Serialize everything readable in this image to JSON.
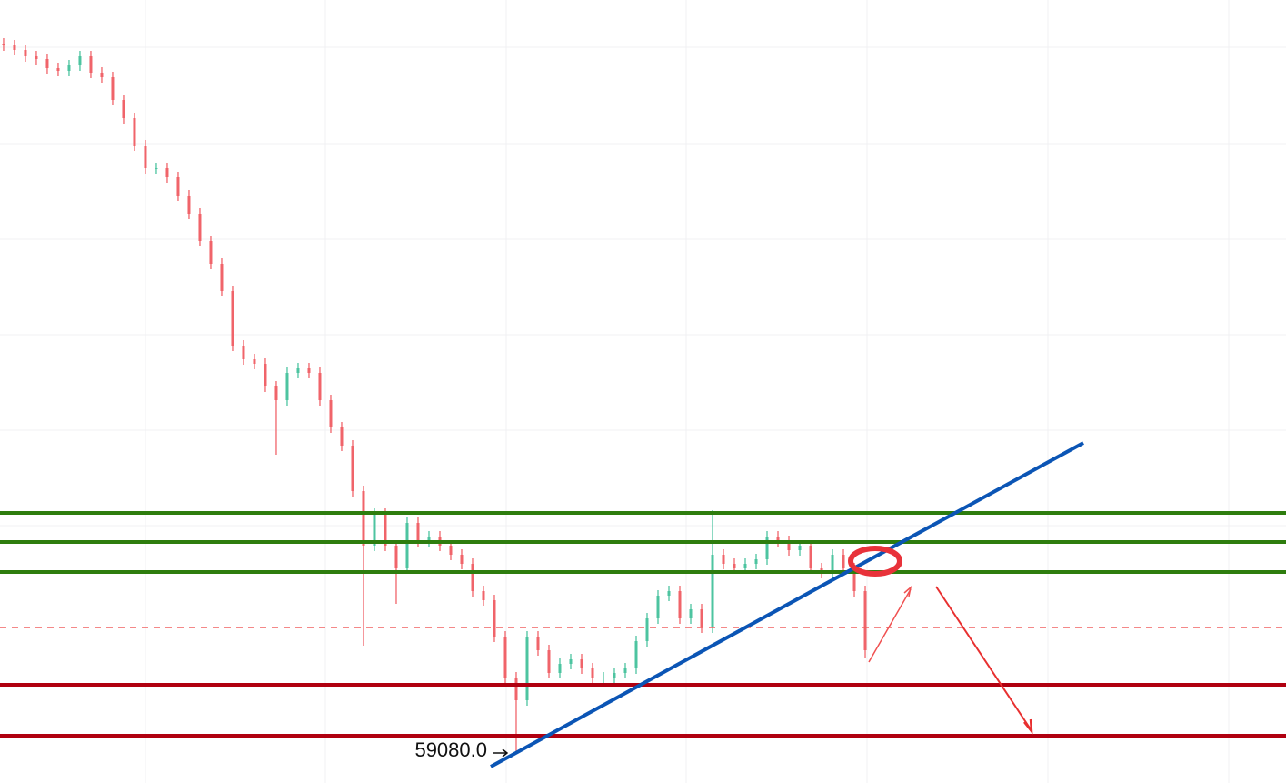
{
  "chart_data": {
    "type": "ohlc",
    "up_color": "#4dc4a0",
    "down_color": "#f0646a",
    "xlim": [
      -0.33,
      117.58
    ],
    "ylim": [
      58730,
      67340
    ],
    "open": [
      66860,
      66840,
      66790,
      66720,
      66690,
      66590,
      66560,
      66620,
      66720,
      66540,
      66490,
      66240,
      66040,
      65740,
      65490,
      65490,
      65390,
      65190,
      64990,
      64690,
      64440,
      64140,
      63540,
      63390,
      63340,
      63090,
      62940,
      63240,
      63290,
      63240,
      62940,
      62640,
      62440,
      61940,
      61340,
      61690,
      61340,
      61090,
      61590,
      61390,
      61440,
      61340,
      61240,
      61140,
      60840,
      60740,
      60340,
      59890,
      59640,
      60340,
      60190,
      59940,
      60040,
      60090,
      59990,
      59890,
      59890,
      59940,
      59990,
      60290,
      60540,
      60790,
      60840,
      60540,
      60640,
      60440,
      61240,
      61140,
      61090,
      61140,
      61190,
      61440,
      61390,
      61290,
      61340,
      61090,
      61040,
      61240,
      61090,
      60840
    ],
    "high": [
      66920,
      66900,
      66850,
      66780,
      66750,
      66650,
      66680,
      66780,
      66780,
      66600,
      66550,
      66300,
      66100,
      65800,
      65550,
      65550,
      65450,
      65250,
      65050,
      64750,
      64500,
      64200,
      63600,
      63450,
      63400,
      63150,
      63300,
      63350,
      63350,
      63300,
      63000,
      62700,
      62500,
      62000,
      61750,
      61750,
      61400,
      61650,
      61650,
      61500,
      61500,
      61400,
      61300,
      61200,
      60900,
      60800,
      60400,
      59950,
      60400,
      60400,
      60250,
      60100,
      60150,
      60150,
      60050,
      59950,
      60000,
      60050,
      60350,
      60600,
      60850,
      60900,
      60900,
      60700,
      60700,
      61730,
      61300,
      61200,
      61200,
      61250,
      61500,
      61500,
      61450,
      61400,
      61400,
      61150,
      61300,
      61300,
      61150,
      60900
    ],
    "low": [
      66780,
      66730,
      66660,
      66630,
      66530,
      66500,
      66500,
      66560,
      66480,
      66430,
      66180,
      65980,
      65680,
      65430,
      65430,
      65330,
      65130,
      64930,
      64630,
      64380,
      64080,
      63480,
      63330,
      63280,
      63030,
      62340,
      62880,
      63180,
      63180,
      62880,
      62580,
      62380,
      61880,
      60240,
      61280,
      61280,
      60700,
      61030,
      61330,
      61330,
      61280,
      61180,
      61080,
      60780,
      60680,
      60280,
      59830,
      59080,
      59580,
      60130,
      59880,
      59880,
      59980,
      59930,
      59830,
      59830,
      59830,
      59880,
      59930,
      60230,
      60480,
      60730,
      60480,
      60480,
      60380,
      60380,
      61080,
      61030,
      61030,
      61080,
      61130,
      61330,
      61230,
      61230,
      61030,
      60980,
      60980,
      61030,
      60780,
      60110
    ],
    "close": [
      66840,
      66790,
      66720,
      66690,
      66590,
      66560,
      66620,
      66720,
      66540,
      66490,
      66240,
      66040,
      65740,
      65490,
      65490,
      65390,
      65190,
      64990,
      64690,
      64440,
      64140,
      63540,
      63390,
      63340,
      63090,
      62940,
      63240,
      63290,
      63240,
      62940,
      62640,
      62440,
      61940,
      61340,
      61690,
      61340,
      61090,
      61590,
      61390,
      61440,
      61340,
      61240,
      61140,
      60840,
      60740,
      60340,
      59890,
      59640,
      60340,
      60190,
      59940,
      60040,
      60090,
      59990,
      59890,
      59890,
      59940,
      59990,
      60290,
      60540,
      60790,
      60840,
      60540,
      60640,
      60440,
      61240,
      61140,
      61090,
      61140,
      61190,
      61440,
      61390,
      61290,
      61340,
      61090,
      61040,
      61240,
      61090,
      60840,
      60190
    ],
    "levels": [
      {
        "value": 61700,
        "color": "#2e7d0e",
        "style": "solid"
      },
      {
        "value": 61380,
        "color": "#2e7d0e",
        "style": "solid"
      },
      {
        "value": 61050,
        "color": "#2e7d0e",
        "style": "solid"
      },
      {
        "value": 60440,
        "color": "#f06060",
        "style": "dashed"
      },
      {
        "value": 59810,
        "color": "#b00010",
        "style": "solid"
      },
      {
        "value": 59250,
        "color": "#b00010",
        "style": "solid"
      }
    ],
    "trendline": {
      "color": "#0b55b5",
      "x": [
        44.67,
        99
      ],
      "values": [
        58910,
        62470
      ]
    },
    "annotation": {
      "index": 47,
      "value": 59080,
      "label": "59080.0"
    }
  }
}
